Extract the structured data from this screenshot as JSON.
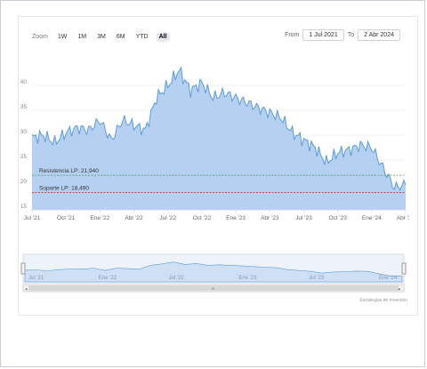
{
  "toolbar": {
    "zoom_label": "Zoom",
    "buttons": [
      "1W",
      "1M",
      "3M",
      "6M",
      "YTD",
      "All"
    ],
    "active": "All",
    "from_label": "From",
    "from_value": "1 Jul 2021",
    "to_label": "To",
    "to_value": "2 Abr 2024"
  },
  "credit": "Estrategias de Inversión",
  "colors": {
    "area_fill": "#a8c8ee",
    "line": "#5b9bd8",
    "resistance": "#3f9f3f",
    "support": "#c0392b",
    "grid": "#e6e6e6",
    "nav_fill": "#cfe0f5"
  },
  "chart_data": {
    "type": "area",
    "title": "",
    "xlabel": "",
    "ylabel": "",
    "ylim": [
      15,
      45
    ],
    "y_ticks": [
      "15",
      "20",
      "25",
      "30",
      "35",
      "40"
    ],
    "x_ticks": [
      "Jul '21",
      "Oct '21",
      "Ene '22",
      "Abr '22",
      "Jul '22",
      "Oct '22",
      "Ene '23",
      "Abr '23",
      "Jul '23",
      "Oct '23",
      "Ene '24",
      "Abr '24"
    ],
    "nav_x_ticks": [
      "Jul '21",
      "Ene '22",
      "Jul '22",
      "Ene '23",
      "Jul '23",
      "Ene '24"
    ],
    "x": [
      "2021-07",
      "2021-08",
      "2021-09",
      "2021-10",
      "2021-11",
      "2021-12",
      "2022-01",
      "2022-02",
      "2022-03",
      "2022-04",
      "2022-05",
      "2022-06",
      "2022-07",
      "2022-08",
      "2022-09",
      "2022-10",
      "2022-11",
      "2022-12",
      "2023-01",
      "2023-02",
      "2023-03",
      "2023-04",
      "2023-05",
      "2023-06",
      "2023-07",
      "2023-08",
      "2023-09",
      "2023-10",
      "2023-11",
      "2023-12",
      "2024-01",
      "2024-02",
      "2024-03",
      "2024-04"
    ],
    "series": [
      {
        "values": [
          29.5,
          30.0,
          28.5,
          30.5,
          31.5,
          31.0,
          33.0,
          29.0,
          33.0,
          32.0,
          31.0,
          37.5,
          40.0,
          43.0,
          39.0,
          40.5,
          37.5,
          38.5,
          37.5,
          36.5,
          35.5,
          34.5,
          33.5,
          30.5,
          29.0,
          27.5,
          24.5,
          26.5,
          27.0,
          28.0,
          27.5,
          23.5,
          19.5,
          20.0
        ]
      }
    ],
    "reference_lines": [
      {
        "label": "Resistencia LP: 21,940",
        "value": 21.94
      },
      {
        "label": "Soporte LP: 18,490",
        "value": 18.49
      }
    ]
  }
}
